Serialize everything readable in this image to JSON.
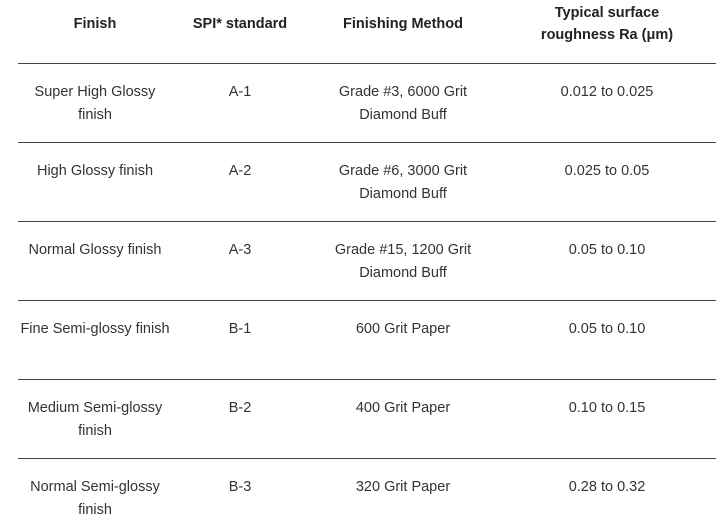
{
  "table": {
    "header": [
      "Finish",
      "SPI* standard",
      "Finishing Method",
      "Typical surface roughness Ra (μm)"
    ],
    "rows": [
      [
        "Super High Glossy finish",
        "A-1",
        "Grade #3, 6000 Grit Diamond Buff",
        "0.012 to 0.025"
      ],
      [
        "High Glossy finish",
        "A-2",
        "Grade #6, 3000 Grit Diamond Buff",
        "0.025 to 0.05"
      ],
      [
        "Normal Glossy finish",
        "A-3",
        "Grade #15, 1200 Grit Diamond Buff",
        "0.05 to 0.10"
      ],
      [
        "Fine Semi-glossy finish",
        "B-1",
        "600 Grit Paper",
        "0.05 to 0.10"
      ],
      [
        "Medium Semi-glossy finish",
        "B-2",
        "400 Grit Paper",
        "0.10 to 0.15"
      ],
      [
        "Normal Semi-glossy finish",
        "B-3",
        "320 Grit Paper",
        "0.28 to 0.32"
      ]
    ]
  }
}
